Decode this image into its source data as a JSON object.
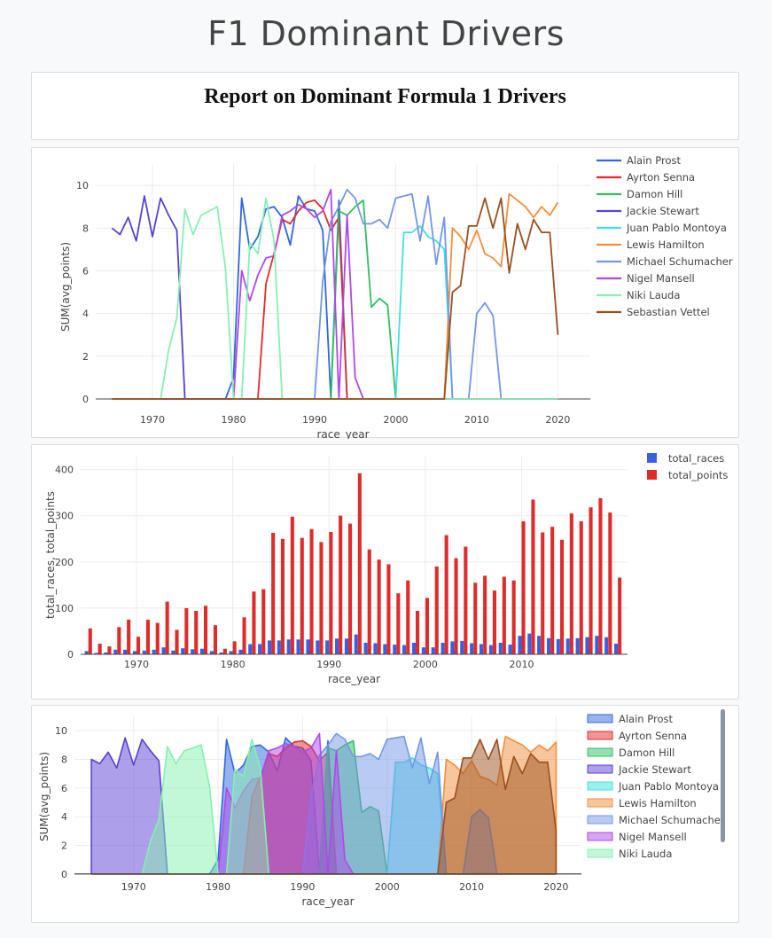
{
  "page": {
    "title": "F1 Dominant Drivers"
  },
  "report": {
    "title": "Report on Dominant Formula 1 Drivers"
  },
  "colors": {
    "Alain Prost": "#2f67e0",
    "Ayrton Senna": "#e02b2b",
    "Damon Hill": "#2fc061",
    "Jackie Stewart": "#5b3fd4",
    "Juan Pablo Montoya": "#3fe0e0",
    "Lewis Hamilton": "#f28e3b",
    "Michael Schumacher": "#7496e8",
    "Nigel Mansell": "#b048e8",
    "Niki Lauda": "#86f0b0",
    "Sebastian Vettel": "#9b4f1e",
    "total_races": "#3a5fe0",
    "total_points": "#e02b2b"
  },
  "chart_data": [
    {
      "type": "line",
      "xlabel": "race_year",
      "ylabel": "SUM(avg_points)",
      "xlim": [
        1963,
        2024
      ],
      "ylim": [
        -0.5,
        11
      ],
      "xticks": [
        1970,
        1980,
        1990,
        2000,
        2010,
        2020
      ],
      "yticks": [
        0,
        2,
        4,
        6,
        8,
        10
      ],
      "grid": true,
      "legend": "right",
      "series": [
        {
          "name": "Alain Prost",
          "points": [
            [
              1965,
              0
            ],
            [
              1979,
              0
            ],
            [
              1980,
              1
            ],
            [
              1981,
              9.4
            ],
            [
              1982,
              7
            ],
            [
              1983,
              7.6
            ],
            [
              1984,
              8.9
            ],
            [
              1985,
              9
            ],
            [
              1986,
              8.5
            ],
            [
              1987,
              7.2
            ],
            [
              1988,
              9.5
            ],
            [
              1989,
              8.9
            ],
            [
              1990,
              8.8
            ],
            [
              1991,
              7.9
            ],
            [
              1992,
              0
            ],
            [
              1993,
              9.3
            ],
            [
              1994,
              0
            ],
            [
              2020,
              0
            ]
          ]
        },
        {
          "name": "Ayrton Senna",
          "points": [
            [
              1965,
              0
            ],
            [
              1983,
              0
            ],
            [
              1984,
              5.4
            ],
            [
              1985,
              6.8
            ],
            [
              1986,
              8.4
            ],
            [
              1987,
              8.2
            ],
            [
              1988,
              8.8
            ],
            [
              1989,
              9.2
            ],
            [
              1990,
              9.3
            ],
            [
              1991,
              8.9
            ],
            [
              1992,
              7.9
            ],
            [
              1993,
              8.5
            ],
            [
              1994,
              0
            ],
            [
              2020,
              0
            ]
          ]
        },
        {
          "name": "Damon Hill",
          "points": [
            [
              1965,
              0
            ],
            [
              1992,
              0
            ],
            [
              1993,
              8.8
            ],
            [
              1994,
              8.6
            ],
            [
              1995,
              9
            ],
            [
              1996,
              9.3
            ],
            [
              1997,
              4.3
            ],
            [
              1998,
              4.7
            ],
            [
              1999,
              4.4
            ],
            [
              2000,
              0
            ],
            [
              2020,
              0
            ]
          ]
        },
        {
          "name": "Jackie Stewart",
          "points": [
            [
              1965,
              8
            ],
            [
              1966,
              7.7
            ],
            [
              1967,
              8.5
            ],
            [
              1968,
              7.4
            ],
            [
              1969,
              9.5
            ],
            [
              1970,
              7.6
            ],
            [
              1971,
              9.4
            ],
            [
              1972,
              8.6
            ],
            [
              1973,
              7.9
            ],
            [
              1974,
              0
            ],
            [
              2020,
              0
            ]
          ]
        },
        {
          "name": "Juan Pablo Montoya",
          "points": [
            [
              1965,
              0
            ],
            [
              2000,
              0
            ],
            [
              2001,
              7.8
            ],
            [
              2002,
              7.8
            ],
            [
              2003,
              8.1
            ],
            [
              2004,
              7.6
            ],
            [
              2005,
              7.4
            ],
            [
              2006,
              7
            ],
            [
              2007,
              0
            ],
            [
              2020,
              0
            ]
          ]
        },
        {
          "name": "Lewis Hamilton",
          "points": [
            [
              1965,
              0
            ],
            [
              2006,
              0
            ],
            [
              2007,
              8
            ],
            [
              2008,
              7.6
            ],
            [
              2009,
              7
            ],
            [
              2010,
              7.9
            ],
            [
              2011,
              6.8
            ],
            [
              2012,
              6.6
            ],
            [
              2013,
              6.2
            ],
            [
              2014,
              9.6
            ],
            [
              2015,
              9.3
            ],
            [
              2016,
              9
            ],
            [
              2017,
              8.5
            ],
            [
              2018,
              9
            ],
            [
              2019,
              8.6
            ],
            [
              2020,
              9.2
            ]
          ]
        },
        {
          "name": "Michael Schumacher",
          "points": [
            [
              1965,
              0
            ],
            [
              1990,
              0
            ],
            [
              1991,
              5.5
            ],
            [
              1992,
              8.3
            ],
            [
              1993,
              9
            ],
            [
              1994,
              9.8
            ],
            [
              1995,
              9.4
            ],
            [
              1996,
              8.2
            ],
            [
              1997,
              8.2
            ],
            [
              1998,
              8.4
            ],
            [
              1999,
              8
            ],
            [
              2000,
              9.4
            ],
            [
              2001,
              9.5
            ],
            [
              2002,
              9.6
            ],
            [
              2003,
              7.4
            ],
            [
              2004,
              9.5
            ],
            [
              2005,
              6.3
            ],
            [
              2006,
              8.5
            ],
            [
              2007,
              0
            ],
            [
              2009,
              0
            ],
            [
              2010,
              4
            ],
            [
              2011,
              4.5
            ],
            [
              2012,
              3.9
            ],
            [
              2013,
              0
            ],
            [
              2020,
              0
            ]
          ]
        },
        {
          "name": "Nigel Mansell",
          "points": [
            [
              1965,
              0
            ],
            [
              1980,
              0
            ],
            [
              1981,
              6
            ],
            [
              1982,
              4.6
            ],
            [
              1983,
              5.8
            ],
            [
              1984,
              6.6
            ],
            [
              1985,
              6.7
            ],
            [
              1986,
              8.6
            ],
            [
              1987,
              8.8
            ],
            [
              1988,
              9.1
            ],
            [
              1989,
              8.9
            ],
            [
              1990,
              8.5
            ],
            [
              1991,
              8.8
            ],
            [
              1992,
              9.8
            ],
            [
              1993,
              0
            ],
            [
              1994,
              8.6
            ],
            [
              1995,
              1
            ],
            [
              1996,
              0
            ],
            [
              2020,
              0
            ]
          ]
        },
        {
          "name": "Niki Lauda",
          "points": [
            [
              1965,
              0
            ],
            [
              1971,
              0
            ],
            [
              1972,
              2.3
            ],
            [
              1973,
              3.8
            ],
            [
              1974,
              8.9
            ],
            [
              1975,
              7.7
            ],
            [
              1976,
              8.6
            ],
            [
              1977,
              8.8
            ],
            [
              1978,
              9
            ],
            [
              1979,
              6.1
            ],
            [
              1980,
              0
            ],
            [
              1981,
              0
            ],
            [
              1982,
              7.3
            ],
            [
              1983,
              6.8
            ],
            [
              1984,
              9.4
            ],
            [
              1985,
              7.4
            ],
            [
              1986,
              0
            ],
            [
              2020,
              0
            ]
          ]
        },
        {
          "name": "Sebastian Vettel",
          "points": [
            [
              1965,
              0
            ],
            [
              2006,
              0
            ],
            [
              2007,
              5
            ],
            [
              2008,
              5.3
            ],
            [
              2009,
              8.1
            ],
            [
              2010,
              8.1
            ],
            [
              2011,
              9.4
            ],
            [
              2012,
              8
            ],
            [
              2013,
              9.4
            ],
            [
              2014,
              5.9
            ],
            [
              2015,
              8.2
            ],
            [
              2016,
              7
            ],
            [
              2017,
              8.4
            ],
            [
              2018,
              7.8
            ],
            [
              2019,
              7.8
            ],
            [
              2020,
              3
            ]
          ]
        }
      ]
    },
    {
      "type": "bar",
      "xlabel": "race_year",
      "ylabel": "total_races, total_points",
      "xlim": [
        1964.2,
        2021
      ],
      "ylim": [
        0,
        430
      ],
      "xticks": [
        1970,
        1980,
        1990,
        2000,
        2010
      ],
      "yticks": [
        0,
        100,
        200,
        300,
        400
      ],
      "grid": true,
      "legend": "top-right",
      "x": [
        1965,
        1966,
        1967,
        1968,
        1969,
        1970,
        1971,
        1972,
        1973,
        1974,
        1975,
        1976,
        1977,
        1978,
        1979,
        1980,
        1981,
        1982,
        1983,
        1984,
        1985,
        1986,
        1987,
        1988,
        1989,
        1990,
        1991,
        1992,
        1993,
        1994,
        1995,
        1996,
        1997,
        1998,
        1999,
        2000,
        2001,
        2002,
        2003,
        2004,
        2005,
        2006,
        2007,
        2008,
        2009,
        2010,
        2011,
        2012,
        2013,
        2014,
        2015,
        2016,
        2017,
        2018,
        2019,
        2020
      ],
      "series": [
        {
          "name": "total_races",
          "values": [
            7,
            3,
            4,
            10,
            10,
            7,
            8,
            10,
            15,
            8,
            13,
            11,
            12,
            7,
            4,
            7,
            10,
            22,
            22,
            30,
            30,
            32,
            32,
            32,
            30,
            30,
            34,
            34,
            43,
            25,
            24,
            22,
            21,
            20,
            25,
            15,
            15,
            25,
            28,
            29,
            24,
            22,
            20,
            25,
            21,
            40,
            45,
            40,
            35,
            33,
            34,
            35,
            37,
            40,
            37,
            23
          ]
        },
        {
          "name": "total_points",
          "values": [
            56,
            23,
            17,
            59,
            75,
            38,
            75,
            68,
            114,
            53,
            100,
            94,
            105,
            63,
            12,
            28,
            80,
            136,
            141,
            263,
            250,
            298,
            252,
            271,
            243,
            265,
            300,
            283,
            392,
            227,
            205,
            195,
            132,
            160,
            94,
            122,
            190,
            258,
            208,
            233,
            155,
            170,
            138,
            168,
            160,
            288,
            335,
            264,
            276,
            248,
            305,
            288,
            318,
            338,
            307,
            166
          ]
        }
      ]
    },
    {
      "type": "area",
      "xlabel": "race_year",
      "ylabel": "SUM(avg_points)",
      "xlim": [
        1963,
        2023
      ],
      "ylim": [
        -0.2,
        11
      ],
      "xticks": [
        1970,
        1980,
        1990,
        2000,
        2010,
        2020
      ],
      "yticks": [
        0,
        2,
        4,
        6,
        8,
        10
      ],
      "grid": true,
      "legend": "right",
      "series_ref": "same as first chart"
    }
  ]
}
